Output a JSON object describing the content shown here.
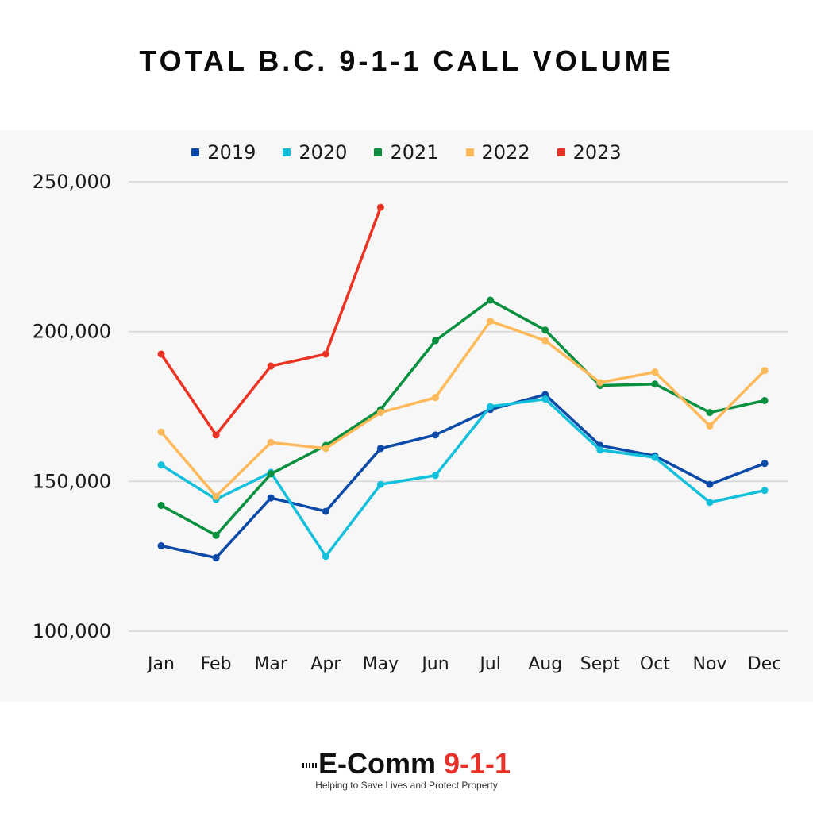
{
  "title": "TOTAL B.C. 9-1-1 CALL VOLUME",
  "legend": [
    {
      "label": "2019",
      "color": "#0b4aa8"
    },
    {
      "label": "2020",
      "color": "#13c0dc"
    },
    {
      "label": "2021",
      "color": "#08903e"
    },
    {
      "label": "2022",
      "color": "#fdb95a"
    },
    {
      "label": "2023",
      "color": "#ec3323"
    }
  ],
  "logo": {
    "brand": "E-Comm",
    "number": "9-1-1",
    "tagline": "Helping to Save Lives and Protect Property"
  },
  "chart_data": {
    "type": "line",
    "title": "TOTAL B.C. 9-1-1 CALL VOLUME",
    "xlabel": "",
    "ylabel": "",
    "categories": [
      "Jan",
      "Feb",
      "Mar",
      "Apr",
      "May",
      "Jun",
      "Jul",
      "Aug",
      "Sept",
      "Oct",
      "Nov",
      "Dec"
    ],
    "yticks": [
      "100,000",
      "150,000",
      "200,000",
      "250,000"
    ],
    "ylim": [
      100000,
      250000
    ],
    "grid": true,
    "legend_position": "top",
    "series": [
      {
        "name": "2019",
        "color": "#0b4aa8",
        "values": [
          128500,
          124500,
          144500,
          140000,
          161000,
          165500,
          174000,
          179000,
          162000,
          158500,
          149000,
          156000
        ]
      },
      {
        "name": "2020",
        "color": "#13c0dc",
        "values": [
          155500,
          144000,
          153000,
          125000,
          149000,
          152000,
          175000,
          177500,
          160500,
          158000,
          143000,
          147000
        ]
      },
      {
        "name": "2021",
        "color": "#08903e",
        "values": [
          142000,
          132000,
          152500,
          162000,
          174000,
          197000,
          210500,
          200500,
          182000,
          182500,
          173000,
          177000
        ]
      },
      {
        "name": "2022",
        "color": "#fdb95a",
        "values": [
          166500,
          145000,
          163000,
          161000,
          173000,
          178000,
          203500,
          197000,
          183000,
          186500,
          168500,
          187000
        ]
      },
      {
        "name": "2023",
        "color": "#ec3323",
        "values": [
          192500,
          165500,
          188500,
          192500,
          241500
        ]
      }
    ]
  }
}
